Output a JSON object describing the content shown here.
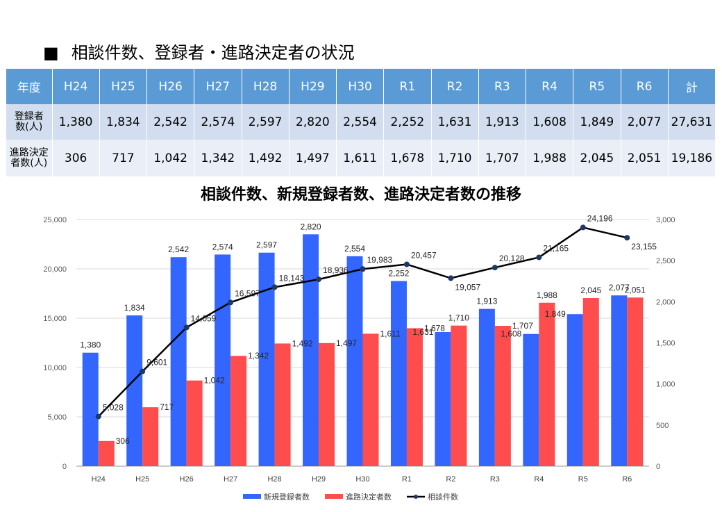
{
  "heading": {
    "marker": "■",
    "text": "相談件数、登録者・進路決定者の状況"
  },
  "table": {
    "header_label": "年度",
    "years": [
      "H24",
      "H25",
      "H26",
      "H27",
      "H28",
      "H29",
      "H30",
      "R1",
      "R2",
      "R3",
      "R4",
      "R5",
      "R6"
    ],
    "total_label": "計",
    "rows": [
      {
        "label_line1": "登録者",
        "label_line2": "数(人)",
        "values": [
          "1,380",
          "1,834",
          "2,542",
          "2,574",
          "2,597",
          "2,820",
          "2,554",
          "2,252",
          "1,631",
          "1,913",
          "1,608",
          "1,849",
          "2,077"
        ],
        "total": "27,631"
      },
      {
        "label_line1": "進路決定",
        "label_line2": "者数(人)",
        "values": [
          "306",
          "717",
          "1,042",
          "1,342",
          "1,492",
          "1,497",
          "1,611",
          "1,678",
          "1,710",
          "1,707",
          "1,988",
          "2,045",
          "2,051"
        ],
        "total": "19,186"
      }
    ]
  },
  "chart_title": "相談件数、新規登録者数、進路決定者数の推移",
  "chart_data": {
    "type": "bar",
    "categories": [
      "H24",
      "H25",
      "H26",
      "H27",
      "H28",
      "H29",
      "H30",
      "R1",
      "R2",
      "R3",
      "R4",
      "R5",
      "R6"
    ],
    "series": [
      {
        "name": "新規登録者数",
        "type": "bar",
        "axis": "right",
        "color": "#3366ff",
        "values": [
          1380,
          1834,
          2542,
          2574,
          2597,
          2820,
          2554,
          2252,
          1631,
          1913,
          1608,
          1849,
          2077
        ]
      },
      {
        "name": "進路決定者数",
        "type": "bar",
        "axis": "right",
        "color": "#ff4d4d",
        "values": [
          306,
          717,
          1042,
          1342,
          1492,
          1497,
          1611,
          1678,
          1710,
          1707,
          1988,
          2045,
          2051
        ]
      },
      {
        "name": "相談件数",
        "type": "line",
        "axis": "left",
        "color": "#000000",
        "values": [
          5028,
          9601,
          14059,
          16597,
          18143,
          18936,
          19983,
          20457,
          19057,
          20128,
          21165,
          24196,
          23155
        ]
      }
    ],
    "left_axis": {
      "min": 0,
      "max": 25000,
      "ticks": [
        "0",
        "5,000",
        "10,000",
        "15,000",
        "20,000",
        "25,000"
      ]
    },
    "right_axis": {
      "min": 0,
      "max": 3000,
      "ticks": [
        "0",
        "500",
        "1,000",
        "1,500",
        "2,000",
        "2,500",
        "3,000"
      ]
    },
    "grid": true,
    "legend": "bottom",
    "colors": {
      "bar1": "#3366ff",
      "bar2": "#ff4d4d",
      "line": "#000000"
    }
  }
}
